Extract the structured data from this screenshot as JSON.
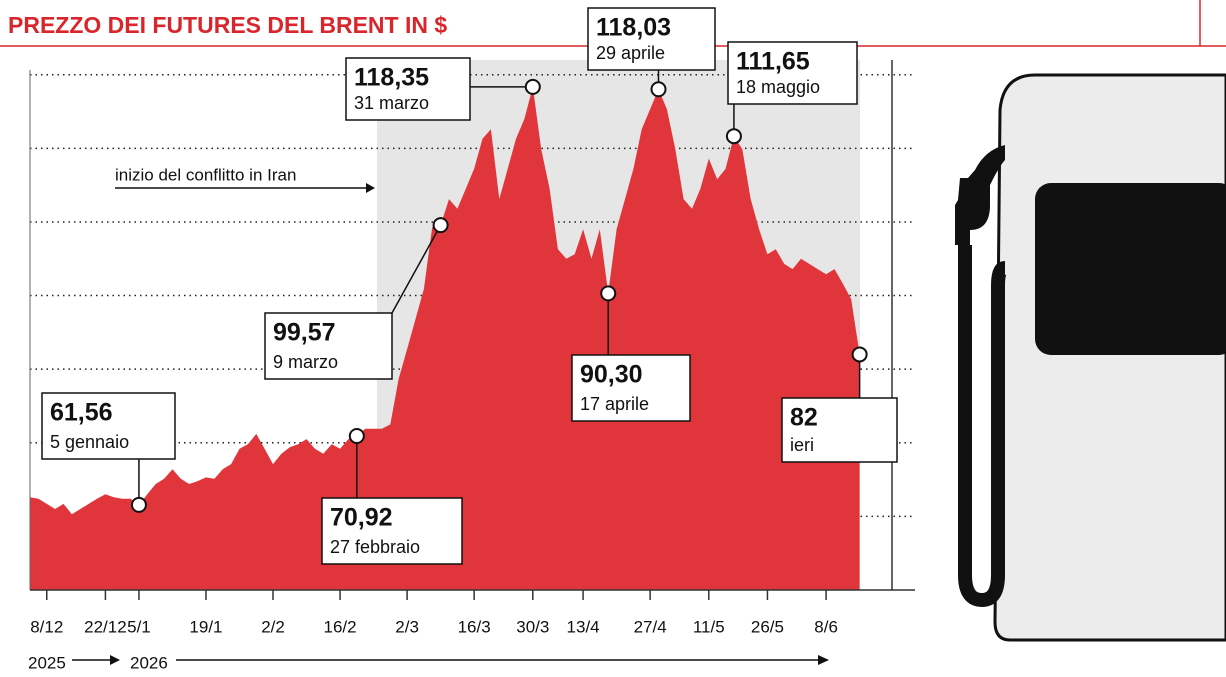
{
  "chart_data": {
    "type": "area",
    "title": "PREZZO DEI FUTURES DEL BRENT IN $",
    "annotation": "inizio del conflitto in Iran",
    "year_labels": [
      "2025",
      "2026"
    ],
    "categories": [
      null,
      null,
      "8/12",
      null,
      null,
      null,
      null,
      null,
      null,
      "22/12",
      null,
      null,
      null,
      "5/1",
      null,
      null,
      null,
      null,
      null,
      null,
      null,
      "19/1",
      null,
      null,
      null,
      null,
      null,
      null,
      null,
      "2/2",
      null,
      null,
      null,
      null,
      null,
      null,
      null,
      "16/2",
      null,
      null,
      null,
      null,
      null,
      null,
      null,
      "2/3",
      null,
      null,
      null,
      null,
      null,
      null,
      null,
      "16/3",
      null,
      null,
      null,
      null,
      null,
      null,
      "30/3",
      null,
      null,
      null,
      null,
      null,
      "13/4",
      null,
      null,
      null,
      null,
      null,
      null,
      null,
      "27/4",
      null,
      null,
      null,
      null,
      null,
      null,
      "11/5",
      null,
      null,
      null,
      null,
      null,
      null,
      "26/5",
      null,
      null,
      null,
      null,
      null,
      null,
      "8/6",
      null,
      null,
      null,
      null
    ],
    "values": [
      62.6,
      62.4,
      61.7,
      61.0,
      61.7,
      60.3,
      61.0,
      61.7,
      62.4,
      63.0,
      62.6,
      62.4,
      62.4,
      61.56,
      63.0,
      64.4,
      65.1,
      66.4,
      65.1,
      64.4,
      64.8,
      65.3,
      65.1,
      66.4,
      67.1,
      69.2,
      69.8,
      71.2,
      69.2,
      67.1,
      68.5,
      69.4,
      69.8,
      70.5,
      69.2,
      68.5,
      69.8,
      69.2,
      70.5,
      70.92,
      71.9,
      71.9,
      71.9,
      72.5,
      78.7,
      82.7,
      86.8,
      90.9,
      99.3,
      99.57,
      103.1,
      101.8,
      104.5,
      107.2,
      111.3,
      112.6,
      103.1,
      107.2,
      111.3,
      114.0,
      118.35,
      109.9,
      104.5,
      96.3,
      95.0,
      95.6,
      99.0,
      95.0,
      99.0,
      90.3,
      99.0,
      103.1,
      107.2,
      112.6,
      115.3,
      118.03,
      115.3,
      109.9,
      103.1,
      101.8,
      104.5,
      108.6,
      105.8,
      107.2,
      111.65,
      109.9,
      103.1,
      99.0,
      95.6,
      96.3,
      94.3,
      93.6,
      95.0,
      94.3,
      93.6,
      92.9,
      93.6,
      91.6,
      89.5,
      82
    ],
    "value_labels": [
      null,
      null,
      null,
      null,
      null,
      null,
      null,
      null,
      null,
      null,
      null,
      null,
      null,
      "61,56",
      null,
      null,
      null,
      null,
      null,
      null,
      null,
      null,
      null,
      null,
      null,
      null,
      null,
      null,
      null,
      null,
      null,
      null,
      null,
      null,
      null,
      null,
      null,
      null,
      null,
      "70,92",
      null,
      null,
      null,
      null,
      null,
      null,
      null,
      null,
      null,
      "99,57",
      null,
      null,
      null,
      null,
      null,
      null,
      null,
      null,
      null,
      null,
      "118,35",
      null,
      null,
      null,
      null,
      null,
      null,
      null,
      null,
      "90,30",
      null,
      null,
      null,
      null,
      null,
      "118,03",
      null,
      null,
      null,
      null,
      null,
      null,
      null,
      null,
      "111,65",
      null,
      null,
      null,
      null,
      null,
      null,
      null,
      null,
      null,
      null,
      null,
      null,
      null,
      null,
      "82"
    ],
    "point_dates": [
      null,
      null,
      null,
      null,
      null,
      null,
      null,
      null,
      null,
      null,
      null,
      null,
      null,
      "5 gennaio",
      null,
      null,
      null,
      null,
      null,
      null,
      null,
      null,
      null,
      null,
      null,
      null,
      null,
      null,
      null,
      null,
      null,
      null,
      null,
      null,
      null,
      null,
      null,
      null,
      null,
      "27 febbraio",
      null,
      null,
      null,
      null,
      null,
      null,
      null,
      null,
      null,
      "9 marzo",
      null,
      null,
      null,
      null,
      null,
      null,
      null,
      null,
      null,
      null,
      "31 marzo",
      null,
      null,
      null,
      null,
      null,
      null,
      null,
      null,
      "17 aprile",
      null,
      null,
      null,
      null,
      null,
      "29 aprile",
      null,
      null,
      null,
      null,
      null,
      null,
      null,
      null,
      "18 maggio",
      null,
      null,
      null,
      null,
      null,
      null,
      null,
      null,
      null,
      null,
      null,
      null,
      null,
      null,
      "ieri"
    ],
    "color": "#e0353b",
    "ylim": [
      50,
      122
    ],
    "yticks": [
      60,
      70,
      80,
      90,
      100,
      110,
      120
    ],
    "grid": true
  }
}
